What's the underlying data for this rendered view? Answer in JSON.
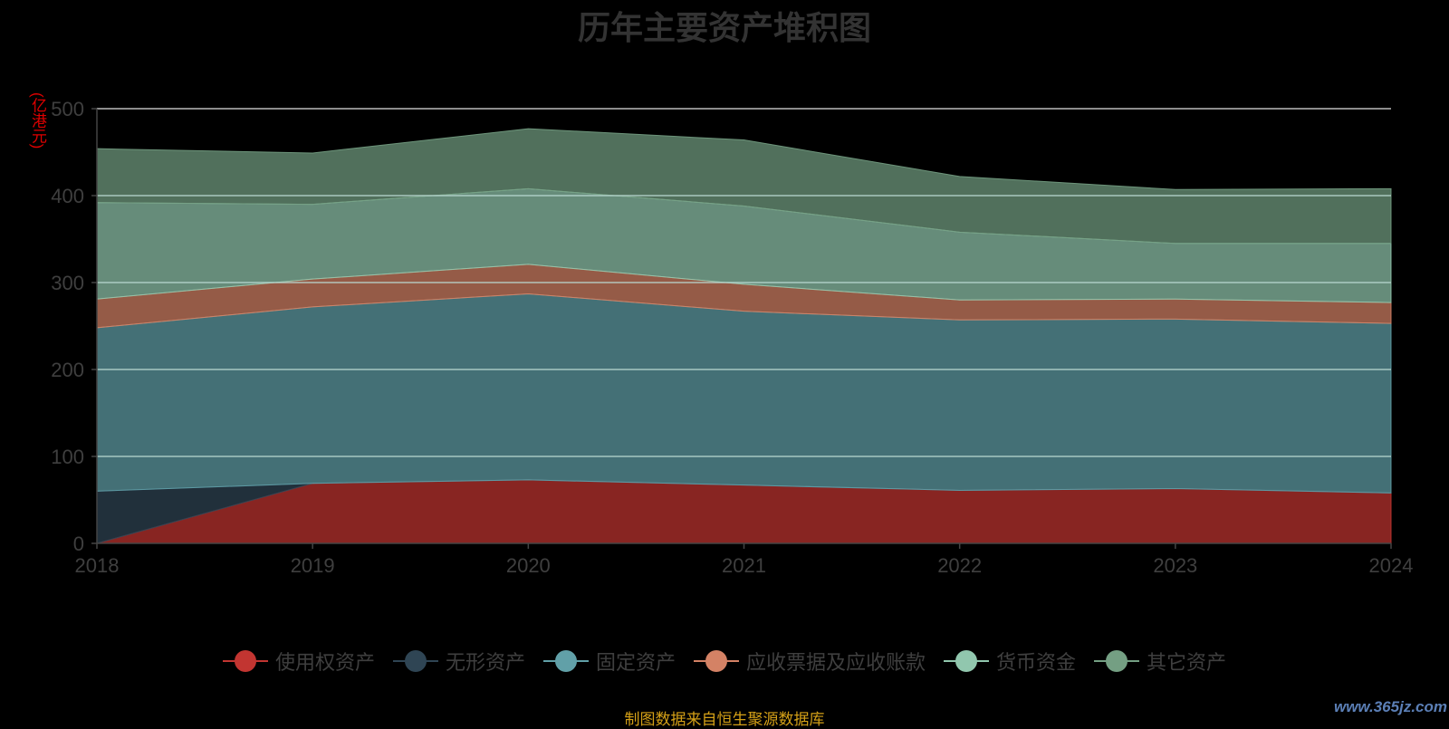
{
  "chart_data": {
    "type": "area",
    "stacked": true,
    "title": "历年主要资产堆积图",
    "y_unit": "(亿港元)",
    "x": [
      "2018",
      "2019",
      "2020",
      "2021",
      "2022",
      "2023",
      "2024"
    ],
    "ylim": [
      0,
      500
    ],
    "y_ticks": [
      "0",
      "100",
      "200",
      "300",
      "400",
      "500"
    ],
    "grid": true,
    "legend_position": "bottom",
    "series": [
      {
        "name": "使用权资产",
        "color": "#c23531",
        "values": [
          0,
          69,
          73,
          67,
          61,
          63,
          58
        ]
      },
      {
        "name": "无形资产",
        "color": "#2f4554",
        "values": [
          60,
          0,
          0,
          0,
          0,
          0,
          0
        ]
      },
      {
        "name": "固定资产",
        "color": "#61a0a8",
        "values": [
          188,
          203,
          214,
          200,
          196,
          195,
          195
        ]
      },
      {
        "name": "应收票据及应收账款",
        "color": "#d48265",
        "values": [
          33,
          32,
          34,
          31,
          23,
          23,
          24
        ]
      },
      {
        "name": "货币资金",
        "color": "#91c7ae",
        "values": [
          111,
          86,
          87,
          90,
          78,
          64,
          68
        ]
      },
      {
        "name": "其它资产",
        "color": "#749f83",
        "values": [
          62,
          59,
          69,
          76,
          64,
          62,
          63
        ]
      }
    ]
  },
  "source_note": "制图数据来自恒生聚源数据库",
  "watermark": "www.365jz.com"
}
